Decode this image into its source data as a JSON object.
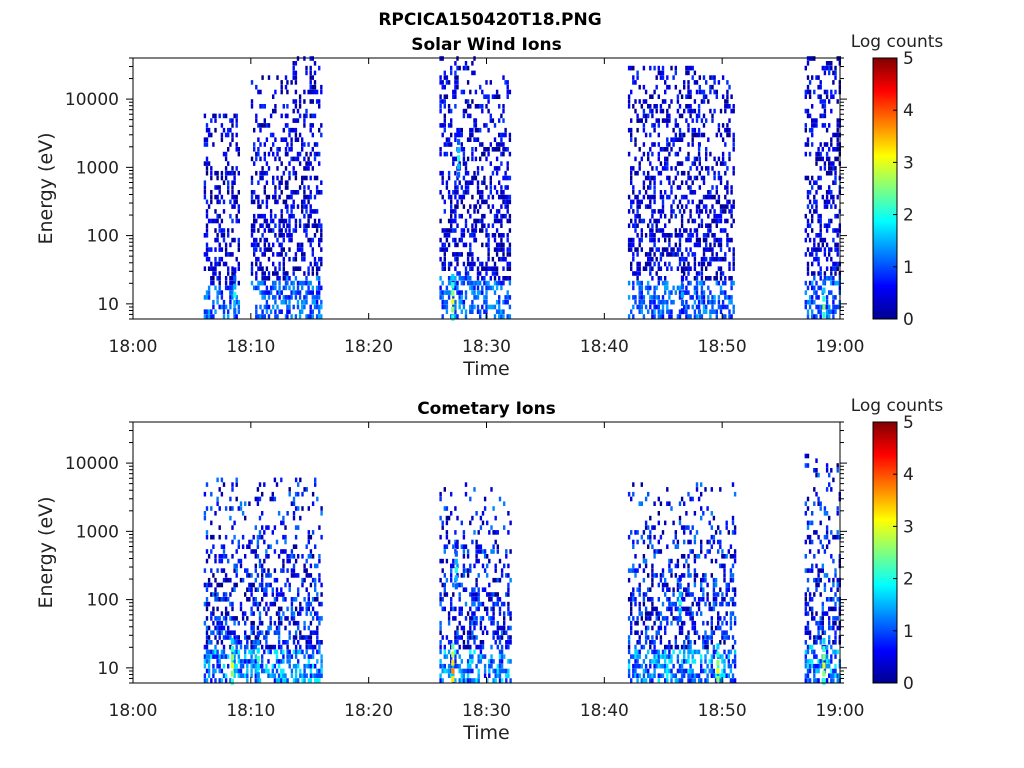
{
  "figure": {
    "title": "RPCICA150420T18.PNG"
  },
  "chart_data": [
    {
      "type": "heatmap",
      "title": "Solar Wind Ions",
      "xlabel": "Time",
      "ylabel": "Energy (eV)",
      "y_scale": "log",
      "xlim": [
        "18:00",
        "19:00"
      ],
      "ylim": [
        6,
        40000
      ],
      "x_ticks": [
        "18:00",
        "18:10",
        "18:20",
        "18:30",
        "18:40",
        "18:50",
        "19:00"
      ],
      "y_ticks": [
        10,
        100,
        1000,
        10000
      ],
      "y_tick_labels": [
        "10",
        "100",
        "1000",
        "10000"
      ],
      "colorbar": {
        "label": "Log counts",
        "min": 0,
        "max": 5,
        "ticks": [
          "0",
          "1",
          "2",
          "3",
          "4",
          "5"
        ],
        "colormap": "jet"
      },
      "active_intervals": [
        {
          "start": "18:06",
          "end": "18:09",
          "emax": 6000
        },
        {
          "start": "18:10",
          "end": "18:13",
          "emax": 20000
        },
        {
          "start": "18:13",
          "end": "18:16",
          "emax": 40000
        },
        {
          "start": "18:26",
          "end": "18:29",
          "emax": 40000
        },
        {
          "start": "18:29",
          "end": "18:32",
          "emax": 20000
        },
        {
          "start": "18:42",
          "end": "18:48",
          "emax": 30000
        },
        {
          "start": "18:48",
          "end": "18:51",
          "emax": 20000
        },
        {
          "start": "18:57",
          "end": "19:00",
          "emax": 40000
        }
      ],
      "peaks": [
        {
          "time": "18:08.5",
          "energy": 15,
          "log_counts": 2.0
        },
        {
          "time": "18:27.0",
          "energy": 12,
          "log_counts": 3.0
        },
        {
          "time": "18:27.5",
          "energy": 1500,
          "log_counts": 2.0
        },
        {
          "time": "18:46.5",
          "energy": 15,
          "log_counts": 1.5
        },
        {
          "time": "18:58.5",
          "energy": 10,
          "log_counts": 2.5
        }
      ]
    },
    {
      "type": "heatmap",
      "title": "Cometary Ions",
      "xlabel": "Time",
      "ylabel": "Energy (eV)",
      "y_scale": "log",
      "xlim": [
        "18:00",
        "19:00"
      ],
      "ylim": [
        6,
        40000
      ],
      "x_ticks": [
        "18:00",
        "18:10",
        "18:20",
        "18:30",
        "18:40",
        "18:50",
        "19:00"
      ],
      "y_ticks": [
        10,
        100,
        1000,
        10000
      ],
      "y_tick_labels": [
        "10",
        "100",
        "1000",
        "10000"
      ],
      "colorbar": {
        "label": "Log counts",
        "min": 0,
        "max": 5,
        "ticks": [
          "0",
          "1",
          "2",
          "3",
          "4",
          "5"
        ],
        "colormap": "jet"
      },
      "active_intervals": [
        {
          "start": "18:06",
          "end": "18:16",
          "emax": 6000
        },
        {
          "start": "18:26",
          "end": "18:32",
          "emax": 5000
        },
        {
          "start": "18:42",
          "end": "18:51",
          "emax": 5000
        },
        {
          "start": "18:57",
          "end": "19:00",
          "emax": 12000
        }
      ],
      "peaks": [
        {
          "time": "18:08.3",
          "energy": 12,
          "log_counts": 3.0
        },
        {
          "time": "18:10.5",
          "energy": 15,
          "log_counts": 2.2
        },
        {
          "time": "18:27.0",
          "energy": 10,
          "log_counts": 3.7
        },
        {
          "time": "18:27.3",
          "energy": 300,
          "log_counts": 2.0
        },
        {
          "time": "18:46.3",
          "energy": 100,
          "log_counts": 2.0
        },
        {
          "time": "18:49.5",
          "energy": 10,
          "log_counts": 3.0
        },
        {
          "time": "18:58.5",
          "energy": 12,
          "log_counts": 3.0
        }
      ]
    }
  ]
}
